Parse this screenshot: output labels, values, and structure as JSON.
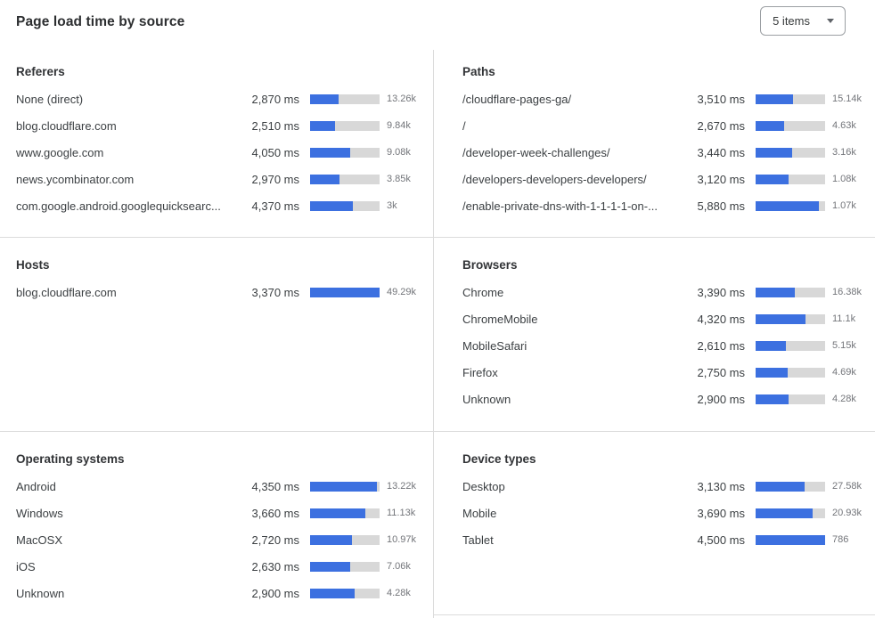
{
  "header": {
    "title": "Page load time by source",
    "items_dropdown": {
      "value": "5 items"
    }
  },
  "colors": {
    "bar_fill": "#3c70e0",
    "bar_track": "#d8d8d8",
    "divider": "#dcdcdc",
    "text_primary": "#36393a",
    "text_muted": "#73757a"
  },
  "chart_data": [
    {
      "type": "bar",
      "orientation": "horizontal",
      "title": "Referers",
      "unit": "ms",
      "rows": [
        {
          "label": "None (direct)",
          "ms": 2870,
          "ms_display": "2,870 ms",
          "count": 13260,
          "count_display": "13.26k",
          "bar_pct": 41
        },
        {
          "label": "blog.cloudflare.com",
          "ms": 2510,
          "ms_display": "2,510 ms",
          "count": 9840,
          "count_display": "9.84k",
          "bar_pct": 36
        },
        {
          "label": "www.google.com",
          "ms": 4050,
          "ms_display": "4,050 ms",
          "count": 9080,
          "count_display": "9.08k",
          "bar_pct": 58
        },
        {
          "label": "news.ycombinator.com",
          "ms": 2970,
          "ms_display": "2,970 ms",
          "count": 3850,
          "count_display": "3.85k",
          "bar_pct": 42
        },
        {
          "label": "com.google.android.googlequicksearc...",
          "ms": 4370,
          "ms_display": "4,370 ms",
          "count": 3000,
          "count_display": "3k",
          "bar_pct": 62
        }
      ]
    },
    {
      "type": "bar",
      "orientation": "horizontal",
      "title": "Paths",
      "unit": "ms",
      "rows": [
        {
          "label": "/cloudflare-pages-ga/",
          "ms": 3510,
          "ms_display": "3,510 ms",
          "count": 15140,
          "count_display": "15.14k",
          "bar_pct": 54
        },
        {
          "label": "/",
          "ms": 2670,
          "ms_display": "2,670 ms",
          "count": 4630,
          "count_display": "4.63k",
          "bar_pct": 41
        },
        {
          "label": "/developer-week-challenges/",
          "ms": 3440,
          "ms_display": "3,440 ms",
          "count": 3160,
          "count_display": "3.16k",
          "bar_pct": 53
        },
        {
          "label": "/developers-developers-developers/",
          "ms": 3120,
          "ms_display": "3,120 ms",
          "count": 1080,
          "count_display": "1.08k",
          "bar_pct": 48
        },
        {
          "label": "/enable-private-dns-with-1-1-1-1-on-...",
          "ms": 5880,
          "ms_display": "5,880 ms",
          "count": 1070,
          "count_display": "1.07k",
          "bar_pct": 91
        }
      ]
    },
    {
      "type": "bar",
      "orientation": "horizontal",
      "title": "Hosts",
      "unit": "ms",
      "rows": [
        {
          "label": "blog.cloudflare.com",
          "ms": 3370,
          "ms_display": "3,370 ms",
          "count": 49290,
          "count_display": "49.29k",
          "bar_pct": 100
        }
      ]
    },
    {
      "type": "bar",
      "orientation": "horizontal",
      "title": "Browsers",
      "unit": "ms",
      "rows": [
        {
          "label": "Chrome",
          "ms": 3390,
          "ms_display": "3,390 ms",
          "count": 16380,
          "count_display": "16.38k",
          "bar_pct": 57
        },
        {
          "label": "ChromeMobile",
          "ms": 4320,
          "ms_display": "4,320 ms",
          "count": 11100,
          "count_display": "11.1k",
          "bar_pct": 72
        },
        {
          "label": "MobileSafari",
          "ms": 2610,
          "ms_display": "2,610 ms",
          "count": 5150,
          "count_display": "5.15k",
          "bar_pct": 44
        },
        {
          "label": "Firefox",
          "ms": 2750,
          "ms_display": "2,750 ms",
          "count": 4690,
          "count_display": "4.69k",
          "bar_pct": 46
        },
        {
          "label": "Unknown",
          "ms": 2900,
          "ms_display": "2,900 ms",
          "count": 4280,
          "count_display": "4.28k",
          "bar_pct": 48
        }
      ]
    },
    {
      "type": "bar",
      "orientation": "horizontal",
      "title": "Operating systems",
      "unit": "ms",
      "rows": [
        {
          "label": "Android",
          "ms": 4350,
          "ms_display": "4,350 ms",
          "count": 13220,
          "count_display": "13.22k",
          "bar_pct": 96
        },
        {
          "label": "Windows",
          "ms": 3660,
          "ms_display": "3,660 ms",
          "count": 11130,
          "count_display": "11.13k",
          "bar_pct": 80
        },
        {
          "label": "MacOSX",
          "ms": 2720,
          "ms_display": "2,720 ms",
          "count": 10970,
          "count_display": "10.97k",
          "bar_pct": 60
        },
        {
          "label": "iOS",
          "ms": 2630,
          "ms_display": "2,630 ms",
          "count": 7060,
          "count_display": "7.06k",
          "bar_pct": 58
        },
        {
          "label": "Unknown",
          "ms": 2900,
          "ms_display": "2,900 ms",
          "count": 4280,
          "count_display": "4.28k",
          "bar_pct": 64
        }
      ]
    },
    {
      "type": "bar",
      "orientation": "horizontal",
      "title": "Device types",
      "unit": "ms",
      "rows": [
        {
          "label": "Desktop",
          "ms": 3130,
          "ms_display": "3,130 ms",
          "count": 27580,
          "count_display": "27.58k",
          "bar_pct": 70
        },
        {
          "label": "Mobile",
          "ms": 3690,
          "ms_display": "3,690 ms",
          "count": 20930,
          "count_display": "20.93k",
          "bar_pct": 82
        },
        {
          "label": "Tablet",
          "ms": 4500,
          "ms_display": "4,500 ms",
          "count": 786,
          "count_display": "786",
          "bar_pct": 100
        }
      ]
    }
  ]
}
